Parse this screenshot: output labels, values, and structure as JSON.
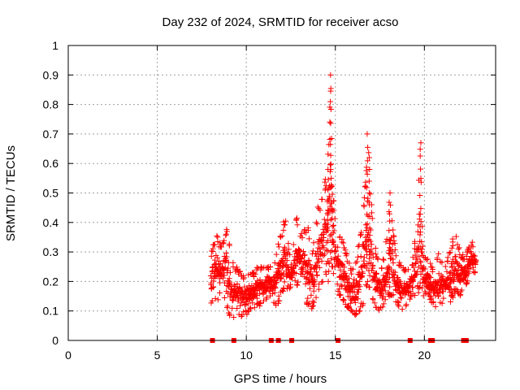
{
  "chart_data": {
    "type": "scatter",
    "title": "Day 232 of 2024, SRMTID for receiver acso",
    "xlabel": "GPS time / hours",
    "ylabel": "SRMTID / TECUs",
    "xlim": [
      0,
      24
    ],
    "ylim": [
      0,
      1
    ],
    "grid": true,
    "x_ticks": [
      0,
      5,
      10,
      15,
      20
    ],
    "x_tick_labels": [
      "0",
      "5",
      "10",
      "15",
      "20"
    ],
    "y_ticks": [
      0,
      0.1,
      0.2,
      0.3,
      0.4,
      0.5,
      0.6,
      0.7,
      0.8,
      0.9,
      1
    ],
    "y_tick_labels": [
      "0",
      "0.1",
      "0.2",
      "0.3",
      "0.4",
      "0.5",
      "0.6",
      "0.7",
      "0.8",
      "0.9",
      "1"
    ],
    "series_color": "#ff0000",
    "marker": "plus",
    "gap_markers_y": 0,
    "gap_markers_x": [
      8.1,
      9.3,
      11.4,
      11.8,
      12.55,
      15.15,
      19.2,
      20.35,
      20.45,
      22.2,
      22.35
    ],
    "envelope": [
      [
        8.0,
        0.12,
        0.3
      ],
      [
        8.3,
        0.13,
        0.36
      ],
      [
        8.6,
        0.14,
        0.33
      ],
      [
        8.9,
        0.1,
        0.4
      ],
      [
        9.2,
        0.05,
        0.27
      ],
      [
        9.5,
        0.07,
        0.25
      ],
      [
        9.8,
        0.08,
        0.22
      ],
      [
        10.1,
        0.09,
        0.24
      ],
      [
        10.4,
        0.1,
        0.23
      ],
      [
        10.7,
        0.11,
        0.26
      ],
      [
        11.0,
        0.12,
        0.25
      ],
      [
        11.3,
        0.16,
        0.25
      ],
      [
        11.6,
        0.1,
        0.28
      ],
      [
        11.9,
        0.14,
        0.36
      ],
      [
        12.2,
        0.18,
        0.43
      ],
      [
        12.5,
        0.16,
        0.25
      ],
      [
        12.8,
        0.18,
        0.42
      ],
      [
        13.1,
        0.18,
        0.36
      ],
      [
        13.4,
        0.12,
        0.4
      ],
      [
        13.7,
        0.1,
        0.3
      ],
      [
        14.0,
        0.15,
        0.45
      ],
      [
        14.3,
        0.18,
        0.5
      ],
      [
        14.5,
        0.22,
        0.58
      ],
      [
        14.65,
        0.25,
        0.68
      ],
      [
        14.75,
        0.3,
        0.9
      ],
      [
        14.85,
        0.22,
        0.52
      ],
      [
        15.0,
        0.18,
        0.4
      ],
      [
        15.3,
        0.14,
        0.37
      ],
      [
        15.6,
        0.12,
        0.3
      ],
      [
        15.9,
        0.09,
        0.24
      ],
      [
        16.2,
        0.08,
        0.28
      ],
      [
        16.5,
        0.1,
        0.4
      ],
      [
        16.75,
        0.15,
        0.6
      ],
      [
        16.85,
        0.2,
        0.7
      ],
      [
        17.0,
        0.15,
        0.48
      ],
      [
        17.3,
        0.1,
        0.3
      ],
      [
        17.6,
        0.1,
        0.25
      ],
      [
        17.9,
        0.12,
        0.37
      ],
      [
        18.1,
        0.15,
        0.5
      ],
      [
        18.4,
        0.12,
        0.28
      ],
      [
        18.7,
        0.1,
        0.26
      ],
      [
        19.0,
        0.12,
        0.24
      ],
      [
        19.3,
        0.15,
        0.25
      ],
      [
        19.6,
        0.15,
        0.42
      ],
      [
        19.75,
        0.18,
        0.67
      ],
      [
        19.9,
        0.15,
        0.3
      ],
      [
        20.2,
        0.15,
        0.28
      ],
      [
        20.5,
        0.12,
        0.24
      ],
      [
        20.8,
        0.1,
        0.3
      ],
      [
        21.1,
        0.14,
        0.25
      ],
      [
        21.4,
        0.12,
        0.3
      ],
      [
        21.7,
        0.16,
        0.37
      ],
      [
        22.0,
        0.15,
        0.3
      ],
      [
        22.3,
        0.18,
        0.28
      ],
      [
        22.6,
        0.22,
        0.34
      ],
      [
        22.9,
        0.23,
        0.31
      ]
    ]
  }
}
